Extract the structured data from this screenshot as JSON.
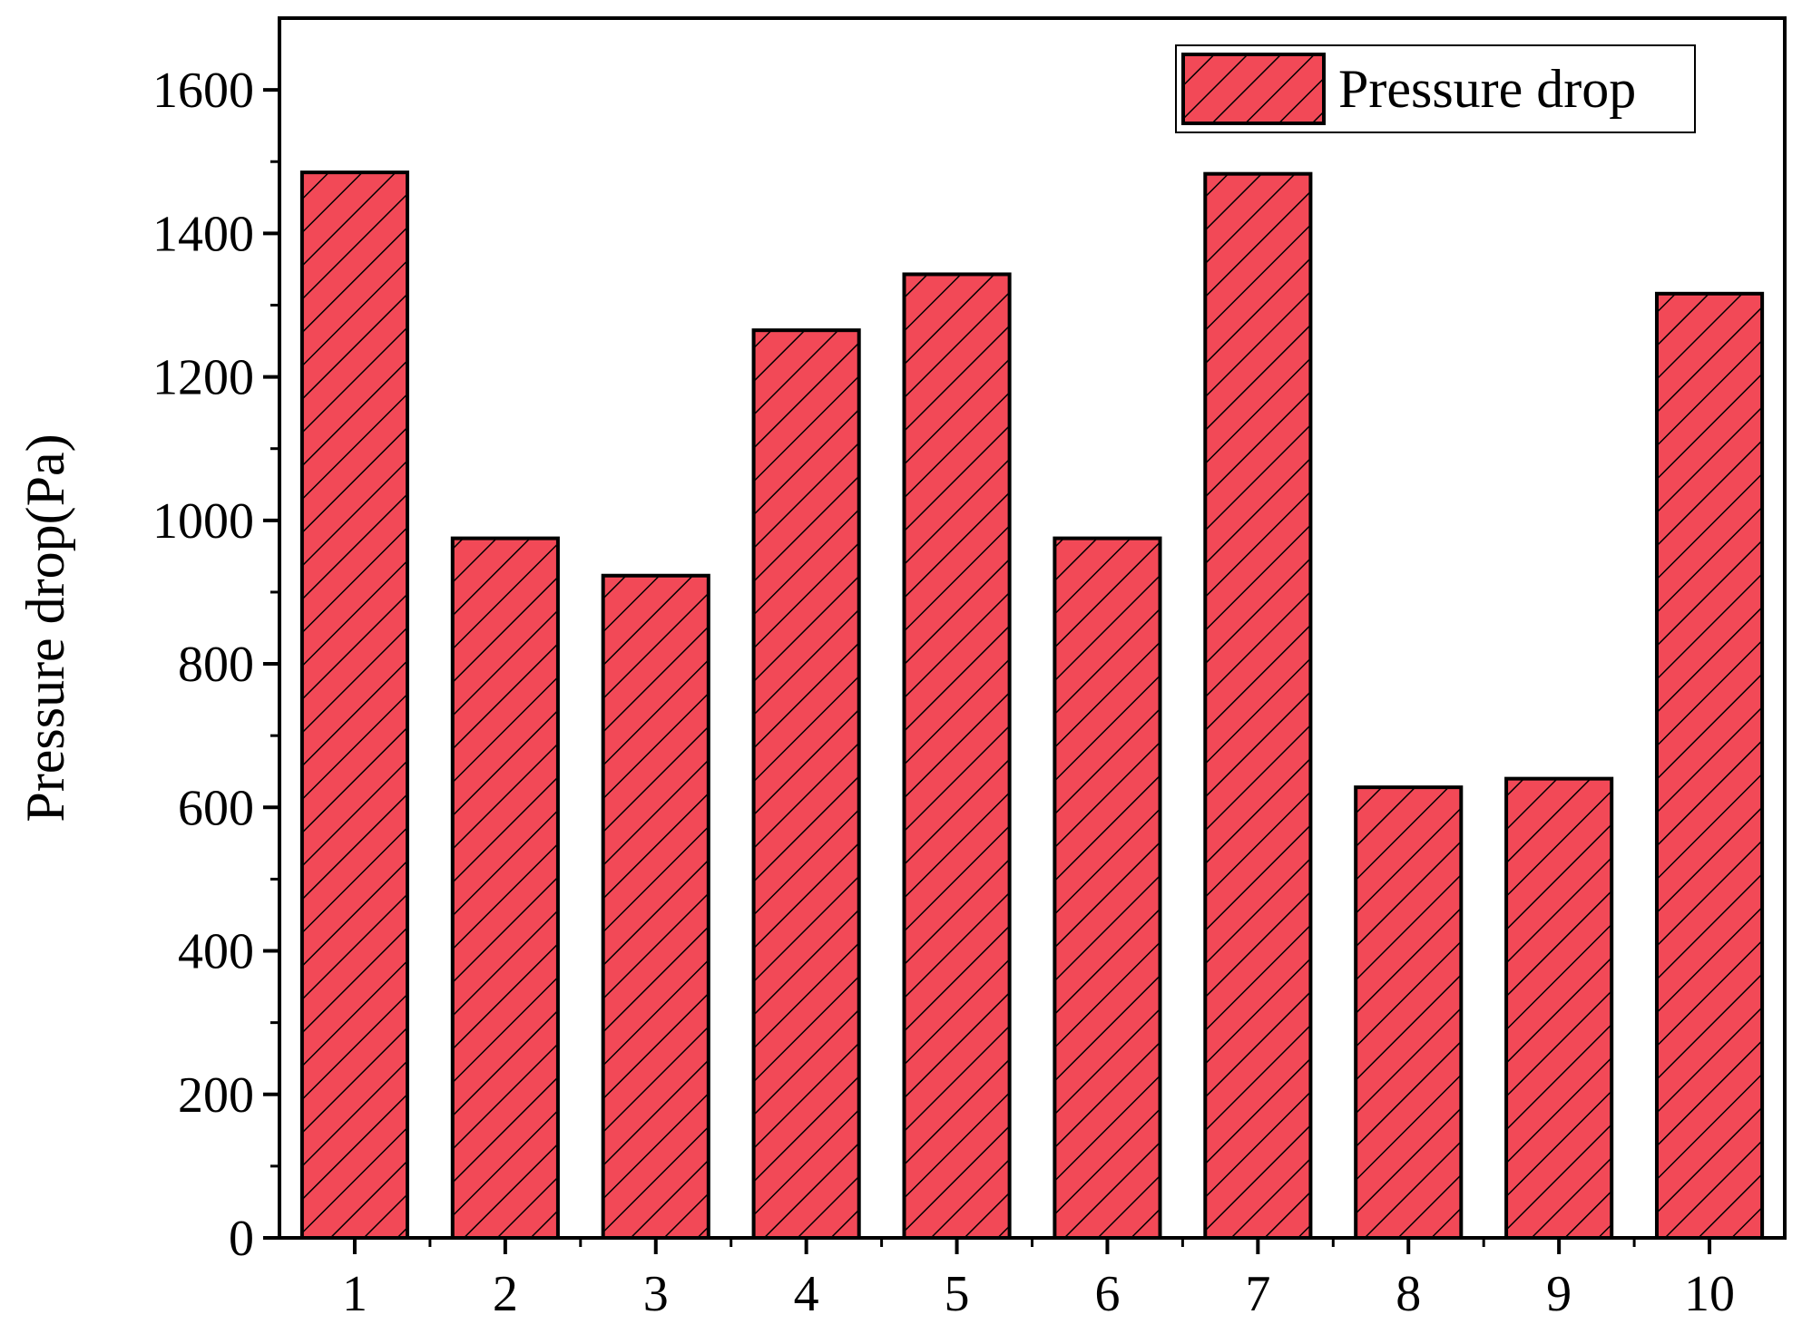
{
  "chart_data": {
    "type": "bar",
    "title": "",
    "xlabel": "",
    "ylabel": "Pressure drop(Pa)",
    "categories": [
      "1",
      "2",
      "3",
      "4",
      "5",
      "6",
      "7",
      "8",
      "9",
      "10"
    ],
    "series": [
      {
        "name": "Pressure drop",
        "values": [
          1485,
          975,
          923,
          1265,
          1343,
          975,
          1483,
          628,
          640,
          1316
        ]
      }
    ],
    "ylim": [
      0,
      1700
    ],
    "yticks": [
      0,
      200,
      400,
      600,
      800,
      1000,
      1200,
      1400,
      1600
    ],
    "legend_position": "top-right",
    "grid": false,
    "colors": {
      "bar_fill": "#f24957",
      "hatch": "#000000",
      "outline": "#000000"
    },
    "bar_pattern": "diagonal-hatch"
  }
}
